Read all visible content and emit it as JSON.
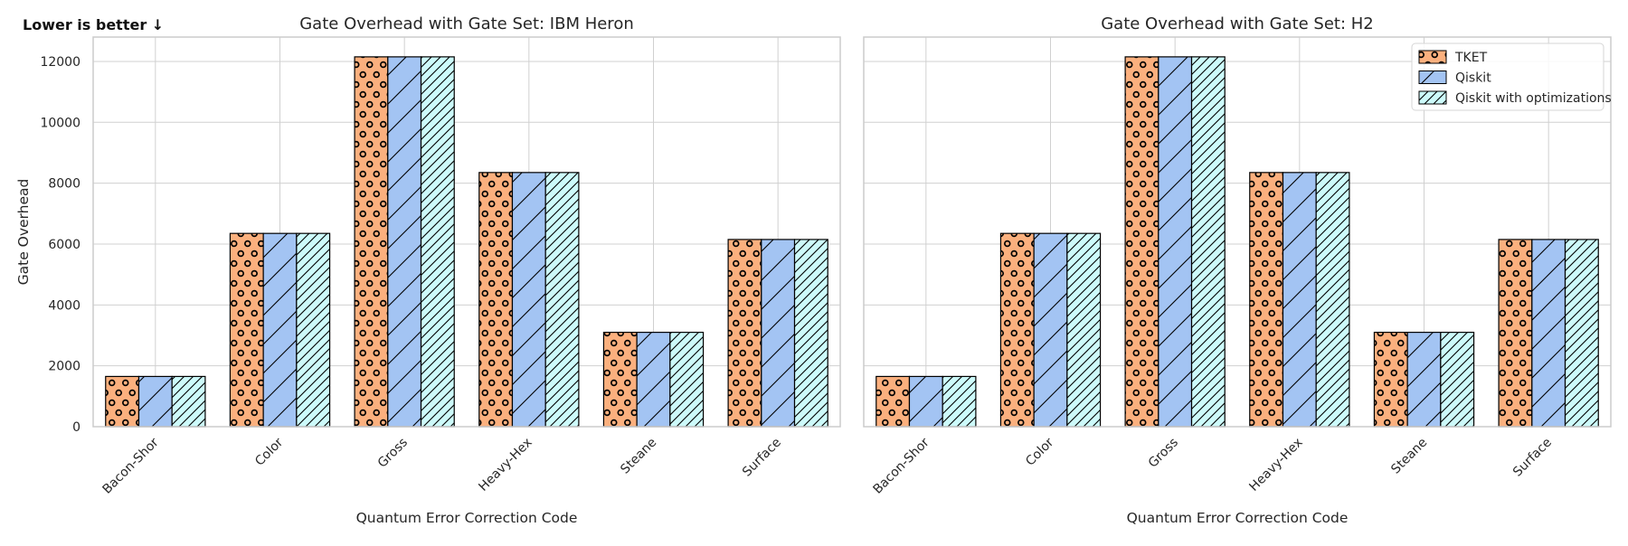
{
  "annotation": "Lower is better ↓",
  "colors": {
    "TKET": "#fbb07e",
    "Qiskit": "#a3c4f3",
    "Qiskit with optimizations": "#cdfafa",
    "grid": "#d0d0d0",
    "frame": "#cccccc",
    "edge": "#000000"
  },
  "chart_data": [
    {
      "type": "bar",
      "title": "Gate Overhead with Gate Set: IBM Heron",
      "xlabel": "Quantum Error Correction Code",
      "ylabel": "Gate Overhead",
      "ylim": [
        0,
        12800
      ],
      "yticks": [
        0,
        2000,
        4000,
        6000,
        8000,
        10000,
        12000
      ],
      "grid": true,
      "categories": [
        "Bacon-Shor",
        "Color",
        "Gross",
        "Heavy-Hex",
        "Steane",
        "Surface"
      ],
      "series": [
        {
          "name": "TKET",
          "hatch": "circles",
          "values": [
            1650,
            6350,
            12150,
            8350,
            3100,
            6150
          ]
        },
        {
          "name": "Qiskit",
          "hatch": "diagonal",
          "values": [
            1650,
            6350,
            12150,
            8350,
            3100,
            6150
          ]
        },
        {
          "name": "Qiskit with optimizations",
          "hatch": "dense-diagonal",
          "values": [
            1650,
            6350,
            12150,
            8350,
            3100,
            6150
          ]
        }
      ]
    },
    {
      "type": "bar",
      "title": "Gate Overhead with Gate Set: H2",
      "xlabel": "Quantum Error Correction Code",
      "ylabel": "",
      "ylim": [
        0,
        12800
      ],
      "yticks": [
        0,
        2000,
        4000,
        6000,
        8000,
        10000,
        12000
      ],
      "grid": true,
      "legend": "top-right",
      "categories": [
        "Bacon-Shor",
        "Color",
        "Gross",
        "Heavy-Hex",
        "Steane",
        "Surface"
      ],
      "series": [
        {
          "name": "TKET",
          "hatch": "circles",
          "values": [
            1650,
            6350,
            12150,
            8350,
            3100,
            6150
          ]
        },
        {
          "name": "Qiskit",
          "hatch": "diagonal",
          "values": [
            1650,
            6350,
            12150,
            8350,
            3100,
            6150
          ]
        },
        {
          "name": "Qiskit with optimizations",
          "hatch": "dense-diagonal",
          "values": [
            1650,
            6350,
            12150,
            8350,
            3100,
            6150
          ]
        }
      ]
    }
  ]
}
